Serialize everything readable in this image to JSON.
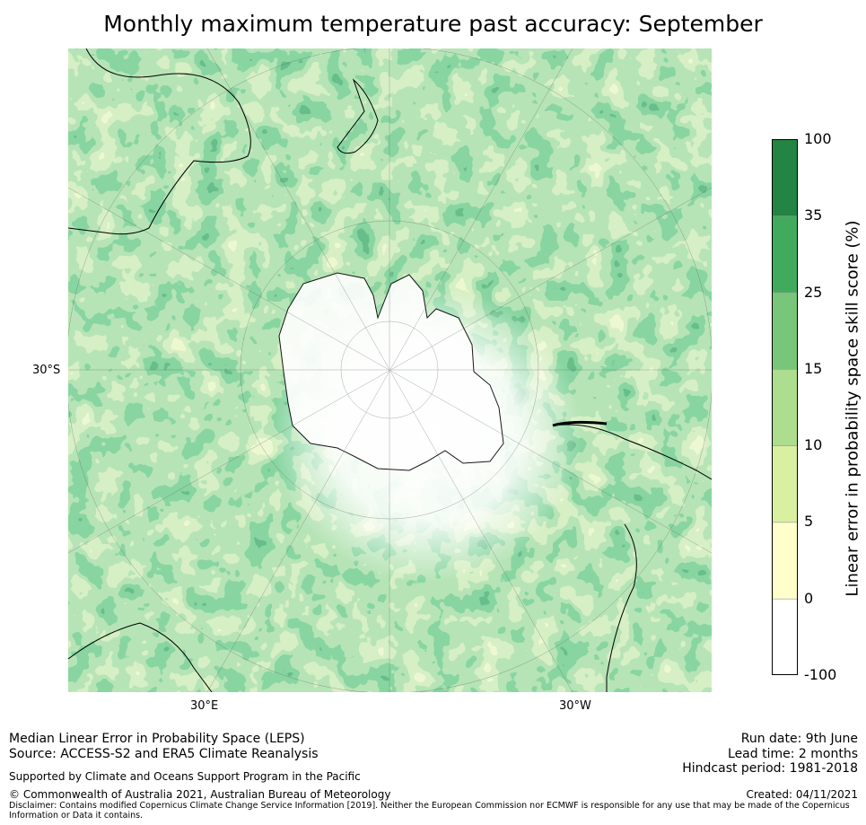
{
  "title": "Monthly maximum temperature past accuracy: September",
  "map": {
    "projection": "south-polar-stereographic",
    "labels": {
      "lat_30s": "30°S",
      "lon_30e": "30°E",
      "lon_30w": "30°W"
    },
    "colors": {
      "ocean_low": "#ffffcc",
      "very_low": "#d9f0a3",
      "low": "#addd8e",
      "mid": "#78c679",
      "high": "#41ab5d",
      "very_high": "#238443"
    }
  },
  "colorbar": {
    "label": "Linear error in probability space skill score (%)",
    "ticks": [
      "100",
      "35",
      "25",
      "15",
      "10",
      "5",
      "0",
      "-100"
    ],
    "bins": [
      {
        "range": "35 to 100",
        "color": "#238443"
      },
      {
        "range": "25 to 35",
        "color": "#41ab5d"
      },
      {
        "range": "15 to 25",
        "color": "#78c679"
      },
      {
        "range": "10 to 15",
        "color": "#addd8e"
      },
      {
        "range": "5 to 10",
        "color": "#d9f0a3"
      },
      {
        "range": "0 to 5",
        "color": "#ffffcc"
      },
      {
        "range": "-100 to 0",
        "color": "#ffffff"
      }
    ]
  },
  "footer": {
    "line1": "Median Linear Error in Probability Space (LEPS)",
    "line2": "Source: ACCESS-S2 and ERA5 Climate Reanalysis",
    "support": "Supported by Climate and Oceans Support Program in the Pacific",
    "copyright": "© Commonwealth of Australia 2021, Australian Bureau of Meteorology",
    "disclaimer": "Disclaimer: Contains modified Copernicus Climate Change Service Information [2019]. Neither the European Commission nor ECMWF is responsible for any use that may be made of the Copernicus Information or Data it contains.",
    "run_date": "Run date: 9th June",
    "lead_time": "Lead time: 2 months",
    "hindcast": "Hindcast period: 1981-2018",
    "created": "Created: 04/11/2021"
  }
}
